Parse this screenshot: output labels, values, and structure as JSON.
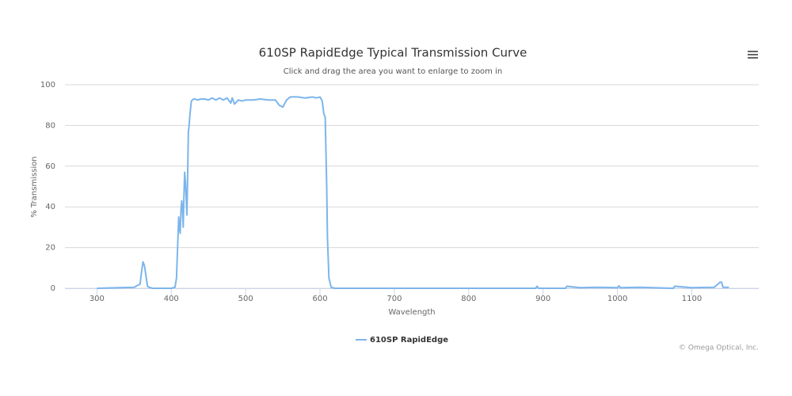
{
  "chart_data": {
    "type": "line",
    "title": "610SP RapidEdge Typical Transmission Curve",
    "subtitle": "Click and drag the area you want to enlarge to zoom in",
    "x_label": "Wavelength",
    "y_label": "% Transmission",
    "credit": "© Omega Optical, Inc.",
    "x": [
      300,
      350,
      355,
      358,
      360,
      362,
      364,
      366,
      368,
      370,
      375,
      400,
      405,
      407,
      409,
      410,
      411,
      412,
      413,
      414,
      415,
      416,
      417,
      418,
      419,
      420,
      421,
      422,
      423,
      424,
      425,
      427,
      430,
      432,
      435,
      440,
      445,
      450,
      455,
      460,
      465,
      470,
      475,
      480,
      482,
      485,
      490,
      495,
      500,
      510,
      520,
      530,
      540,
      545,
      550,
      555,
      560,
      570,
      580,
      590,
      595,
      600,
      603,
      605,
      607,
      609,
      610,
      612,
      615,
      620,
      650,
      700,
      800,
      890,
      892,
      894,
      900,
      930,
      932,
      950,
      970,
      1000,
      1002,
      1004,
      1030,
      1075,
      1077,
      1100,
      1130,
      1135,
      1138,
      1140,
      1142,
      1150
    ],
    "series": [
      {
        "name": "610SP RapidEdge",
        "color": "#7cb5ec",
        "values": [
          0,
          0.5,
          1.5,
          2,
          8,
          13,
          11,
          6,
          1,
          0.5,
          0,
          0,
          0.5,
          5,
          25,
          35,
          30,
          27,
          38,
          43,
          40,
          30,
          45,
          57,
          52,
          45,
          36,
          55,
          77,
          80,
          85,
          92,
          93,
          93,
          92.5,
          93,
          93,
          92.5,
          93.5,
          92.5,
          93.5,
          92.5,
          93.5,
          91,
          93.5,
          90.5,
          92.5,
          92,
          92.5,
          92.5,
          93,
          92.5,
          92.5,
          90,
          89,
          92.5,
          94,
          94,
          93.5,
          94,
          93.5,
          94,
          92,
          86,
          84,
          50,
          25,
          5,
          0.5,
          0,
          0,
          0,
          0,
          0,
          1,
          0,
          0,
          0,
          1,
          0.3,
          0.5,
          0.3,
          1.2,
          0.3,
          0.5,
          0,
          1,
          0.3,
          0.5,
          2,
          3,
          3,
          0.5,
          0.5
        ]
      }
    ],
    "xlim": [
      257,
      1190
    ],
    "xticks": [
      300,
      400,
      500,
      600,
      700,
      800,
      900,
      1000,
      1100
    ],
    "ylim": [
      0,
      100
    ],
    "yticks": [
      0,
      20,
      40,
      60,
      80,
      100
    ],
    "grid": true,
    "legend": "bottom"
  }
}
